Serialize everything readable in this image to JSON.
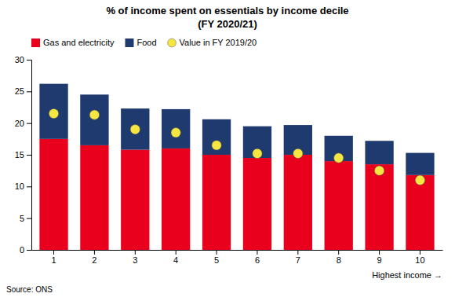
{
  "chart_data": {
    "type": "bar",
    "title": "% of income spent on essentials by income decile",
    "subtitle": "(FY 2020/21)",
    "x_label": "Highest income →",
    "annotations": [
      "Source: ONS"
    ],
    "categories": [
      "1",
      "2",
      "3",
      "4",
      "5",
      "6",
      "7",
      "8",
      "9",
      "10"
    ],
    "series": [
      {
        "name": "Gas and electricity",
        "type": "bar",
        "color": "#e8001c",
        "values": [
          17.5,
          16.5,
          15.8,
          16.0,
          15.0,
          14.5,
          15.0,
          14.0,
          13.5,
          11.8
        ]
      },
      {
        "name": "Food",
        "type": "bar",
        "color": "#1f3a6e",
        "values": [
          8.7,
          8.0,
          6.5,
          6.2,
          5.6,
          5.0,
          4.7,
          4.0,
          3.7,
          3.5
        ]
      },
      {
        "name": "Value in FY 2019/20",
        "type": "scatter",
        "marker": "circle",
        "color": "#f5e642",
        "values": [
          21.5,
          21.3,
          19.0,
          18.5,
          16.5,
          15.2,
          15.2,
          14.5,
          12.5,
          11.0
        ]
      }
    ],
    "stacked": true,
    "ylim": [
      0,
      30
    ],
    "yticks": [
      0,
      5,
      10,
      15,
      20,
      25,
      30
    ],
    "grid": false,
    "legend": "top-left"
  }
}
